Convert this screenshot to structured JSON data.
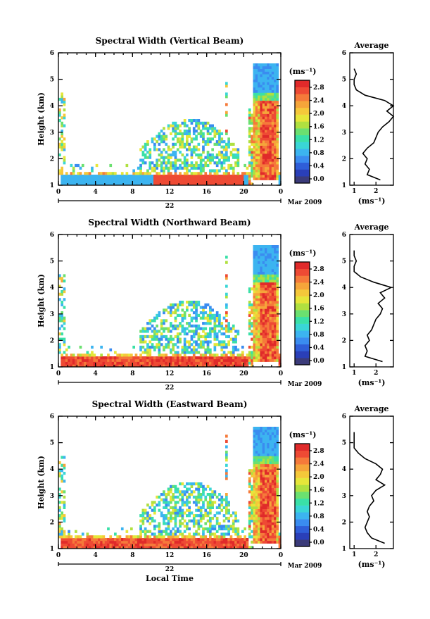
{
  "figure": {
    "xlabel": "Local Time",
    "date_label": "Mar 2009",
    "day_label": "22",
    "colorbar_unit_label": "(ms⁻¹)",
    "colorbar_ticks": [
      "0.0",
      "0.4",
      "0.8",
      "1.2",
      "1.6",
      "2.0",
      "2.4",
      "2.8"
    ],
    "palette": [
      "#3b3b7a",
      "#2a3fb8",
      "#2f5ed8",
      "#3a8cf0",
      "#3cb4f0",
      "#3ad6d6",
      "#3ae0a8",
      "#6be070",
      "#b0e040",
      "#e6e63a",
      "#f5c83a",
      "#f5a53a",
      "#f57a3a",
      "#ee4a34",
      "#e02a2a"
    ],
    "avg_title": "Average",
    "avg_unit": "(ms⁻¹)",
    "x_ticks": [
      "0",
      "4",
      "8",
      "12",
      "16",
      "20",
      "0"
    ],
    "y_ticks": [
      "1",
      "2",
      "3",
      "4",
      "5",
      "6"
    ]
  },
  "panels": [
    {
      "title": "Spectral Width (Vertical Beam)",
      "ylabel": "Height (km)",
      "avg_ticks": [
        "1",
        "2"
      ],
      "chart_data": {
        "type": "heatmap",
        "x_range_hours": [
          0,
          24
        ],
        "y_range_km": [
          1,
          6
        ],
        "z_range_ms": [
          0,
          3.0
        ],
        "average_profile": {
          "height_km": [
            1.2,
            1.4,
            1.6,
            1.8,
            2.0,
            2.2,
            2.4,
            2.6,
            2.8,
            3.0,
            3.2,
            3.4,
            3.6,
            3.8,
            4.0,
            4.2,
            4.4,
            4.6,
            4.8,
            5.0,
            5.2,
            5.4
          ],
          "width_ms": [
            2.2,
            1.6,
            1.7,
            1.5,
            1.6,
            1.4,
            1.6,
            1.9,
            2.0,
            2.1,
            2.3,
            2.6,
            2.8,
            2.5,
            2.8,
            2.4,
            1.5,
            1.1,
            1.0,
            1.0,
            1.1,
            1.0
          ]
        }
      }
    },
    {
      "title": "Spectral Width (Northward Beam)",
      "ylabel": "Height (km)",
      "avg_ticks": [
        "1",
        "2"
      ],
      "chart_data": {
        "type": "heatmap",
        "x_range_hours": [
          0,
          24
        ],
        "y_range_km": [
          1,
          6
        ],
        "z_range_ms": [
          0,
          3.0
        ],
        "average_profile": {
          "height_km": [
            1.2,
            1.4,
            1.6,
            1.8,
            2.0,
            2.2,
            2.4,
            2.6,
            2.8,
            3.0,
            3.2,
            3.4,
            3.6,
            3.8,
            4.0,
            4.2,
            4.4,
            4.6,
            4.8,
            5.0,
            5.2,
            5.4
          ],
          "width_ms": [
            2.3,
            1.5,
            1.6,
            1.5,
            1.7,
            1.6,
            1.8,
            1.9,
            2.0,
            2.2,
            2.3,
            2.1,
            2.4,
            2.2,
            2.7,
            1.9,
            1.3,
            1.0,
            1.0,
            1.1,
            1.0,
            1.0
          ]
        }
      }
    },
    {
      "title": "Spectral Width (Eastward Beam)",
      "ylabel": "Height (km)",
      "avg_ticks": [
        "1",
        "2"
      ],
      "chart_data": {
        "type": "heatmap",
        "x_range_hours": [
          0,
          24
        ],
        "y_range_km": [
          1,
          6
        ],
        "z_range_ms": [
          0,
          3.0
        ],
        "average_profile": {
          "height_km": [
            1.2,
            1.4,
            1.6,
            1.8,
            2.0,
            2.2,
            2.4,
            2.6,
            2.8,
            3.0,
            3.2,
            3.4,
            3.6,
            3.8,
            4.0,
            4.2,
            4.4,
            4.6,
            4.8,
            5.0,
            5.2,
            5.4
          ],
          "width_ms": [
            2.4,
            1.8,
            1.6,
            1.5,
            1.6,
            1.7,
            1.6,
            1.7,
            1.9,
            1.8,
            2.0,
            2.4,
            2.0,
            2.2,
            2.3,
            2.0,
            1.5,
            1.2,
            1.0,
            1.0,
            1.0,
            1.0
          ]
        }
      }
    }
  ]
}
